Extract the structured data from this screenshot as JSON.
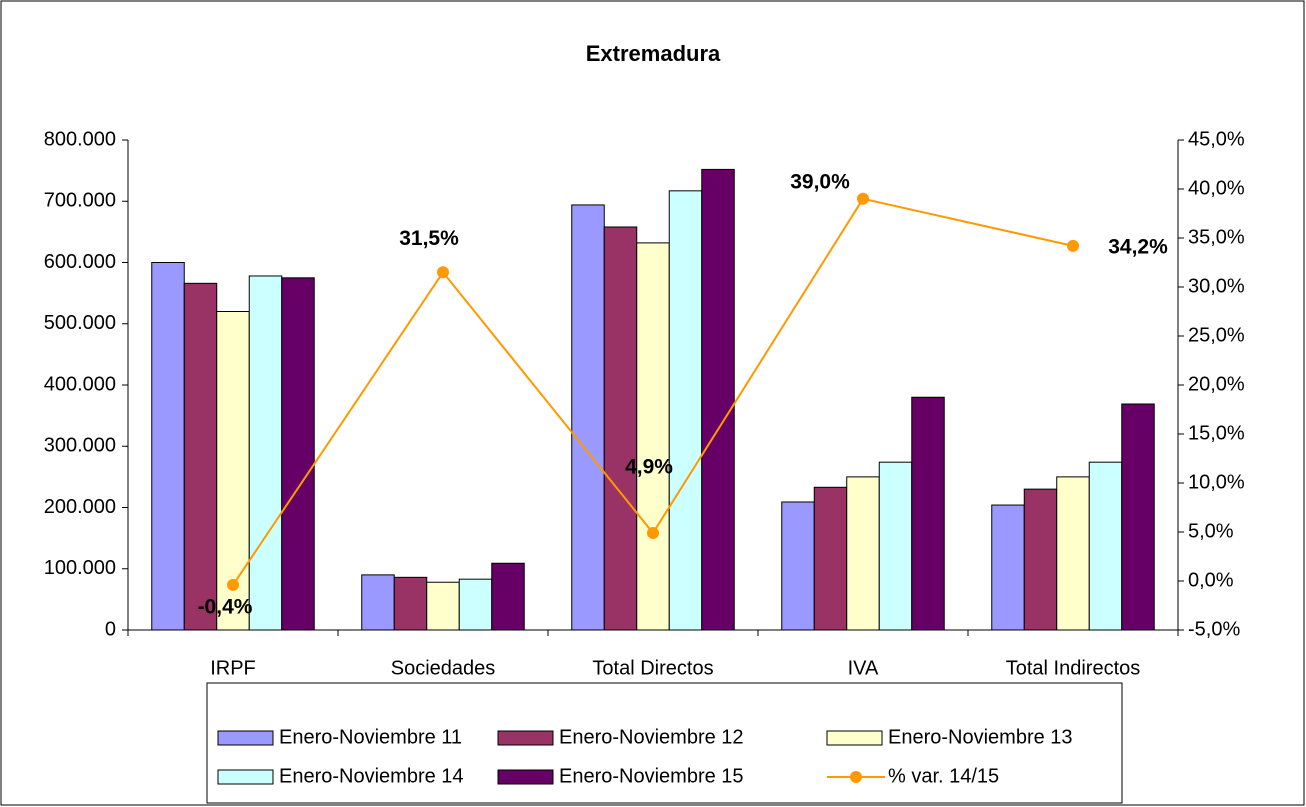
{
  "chart_data": {
    "type": "bar",
    "title": "Extremadura",
    "categories": [
      "IRPF",
      "Sociedades",
      "Total Directos",
      "IVA",
      "Total Indirectos"
    ],
    "series": [
      {
        "name": "Enero-Noviembre 11",
        "color": "#9999ff",
        "values": [
          600000,
          90000,
          694000,
          209000,
          204000
        ]
      },
      {
        "name": "Enero-Noviembre 12",
        "color": "#993366",
        "values": [
          566000,
          86000,
          658000,
          233000,
          230000
        ]
      },
      {
        "name": "Enero-Noviembre 13",
        "color": "#ffffcc",
        "values": [
          520000,
          78000,
          632000,
          250000,
          250000
        ]
      },
      {
        "name": "Enero-Noviembre 14",
        "color": "#ccffff",
        "values": [
          578000,
          83000,
          717000,
          274000,
          274000
        ]
      },
      {
        "name": "Enero-Noviembre 15",
        "color": "#660066",
        "values": [
          575000,
          109000,
          752000,
          380000,
          369000
        ]
      },
      {
        "name": "% var. 14/15",
        "color": "#ff9900",
        "type": "line",
        "axis": "y2",
        "values": [
          -0.4,
          31.5,
          4.9,
          39.0,
          34.2
        ],
        "value_labels": [
          "-0,4%",
          "31,5%",
          "4,9%",
          "39,0%",
          "34,2%"
        ]
      }
    ],
    "ylim": [
      0,
      800000
    ],
    "yticks": [
      0,
      {
        "value": 100000,
        "label": "100.000"
      },
      {
        "value": 200000,
        "label": "200.000"
      },
      {
        "value": 300000,
        "label": "300.000"
      },
      {
        "value": 400000,
        "label": "400.000"
      },
      {
        "value": 500000,
        "label": "500.000"
      },
      {
        "value": 600000,
        "label": "600.000"
      },
      {
        "value": 700000,
        "label": "700.000"
      },
      {
        "value": 800000,
        "label": "800.000"
      }
    ],
    "y2lim": [
      -5,
      45
    ],
    "y2ticks": [
      {
        "value": -5,
        "label": "-5,0%"
      },
      {
        "value": 0,
        "label": "0,0%"
      },
      {
        "value": 5,
        "label": "5,0%"
      },
      {
        "value": 10,
        "label": "10,0%"
      },
      {
        "value": 15,
        "label": "15,0%"
      },
      {
        "value": 20,
        "label": "20,0%"
      },
      {
        "value": 25,
        "label": "25,0%"
      },
      {
        "value": 30,
        "label": "30,0%"
      },
      {
        "value": 35,
        "label": "35,0%"
      },
      {
        "value": 40,
        "label": "40,0%"
      },
      {
        "value": 45,
        "label": "45,0%"
      }
    ],
    "legend": "bottom"
  }
}
